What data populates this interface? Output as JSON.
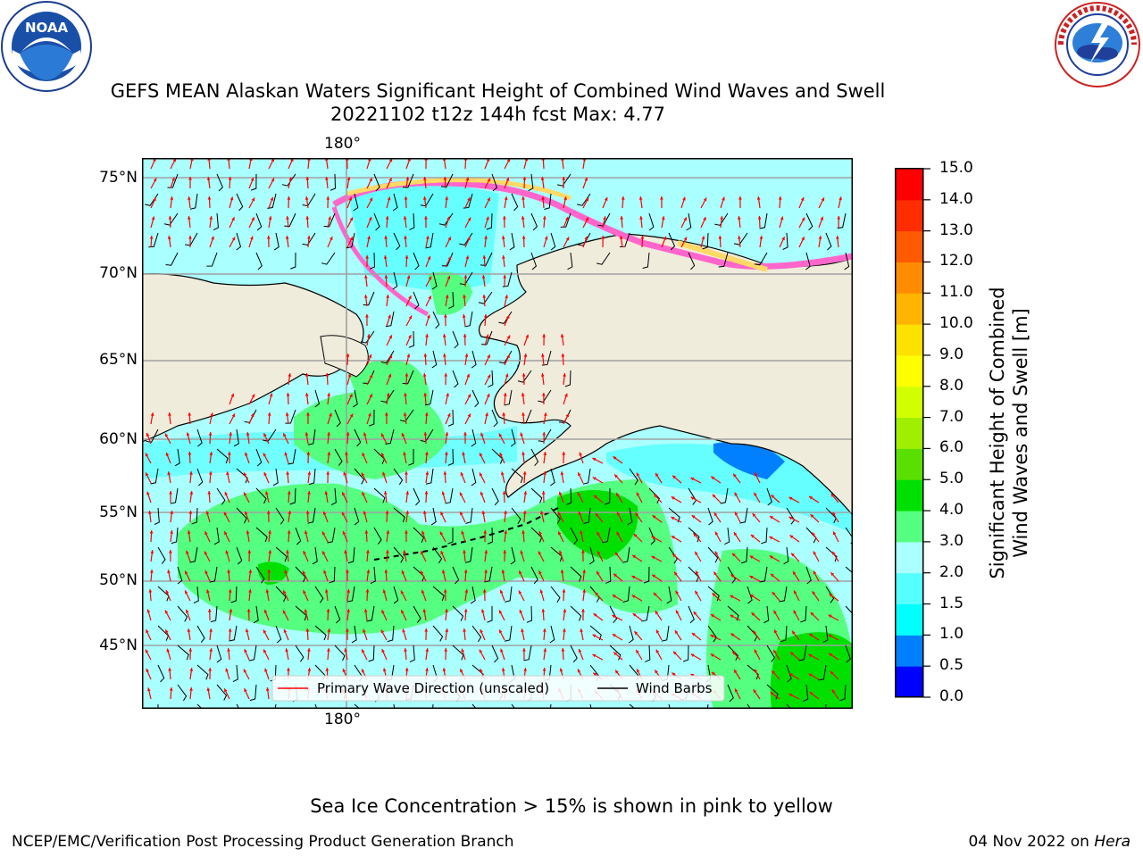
{
  "header": {
    "title_line1": "GEFS MEAN Alaskan Waters Significant Height of Combined Wind Waves and Swell",
    "title_line2": "20221102 t12z 144h fcst   Max: 4.77",
    "left_logo": {
      "text": "NOAA",
      "ring_text": "NATIONAL OCEANIC AND ATMOSPHERIC ADMINISTRATION",
      "bottom_text": "U.S. DEPARTMENT OF COMMERCE"
    },
    "right_logo": {
      "ring_text": "NATIONAL WEATHER SERVICE"
    }
  },
  "map": {
    "lon_label_top": "180°",
    "lon_label_bottom": "180°",
    "lat_labels": [
      "75°N",
      "70°N",
      "65°N",
      "60°N",
      "55°N",
      "50°N",
      "45°N"
    ],
    "legend": {
      "wave_label": "Primary Wave Direction (unscaled)",
      "wind_label": "Wind Barbs"
    }
  },
  "colorbar": {
    "label_line1": "Significant Height of Combined",
    "label_line2": "Wind Waves and Swell [m]",
    "ticks": [
      "15.0",
      "14.0",
      "13.0",
      "12.0",
      "11.0",
      "10.0",
      "9.0",
      "8.0",
      "7.0",
      "6.0",
      "5.0",
      "4.0",
      "3.0",
      "2.0",
      "1.5",
      "1.0",
      "0.5",
      "0.0"
    ],
    "colors_bottom_to_top": [
      "#0000ff",
      "#0080ff",
      "#00ffff",
      "#55ffff",
      "#aaffff",
      "#55ff80",
      "#00e000",
      "#5ae000",
      "#a0ee00",
      "#d2ff00",
      "#ffff00",
      "#ffe100",
      "#ffb400",
      "#ff8c00",
      "#ff5a00",
      "#ff2d00",
      "#ff0000"
    ]
  },
  "note": "Sea Ice Concentration > 15% is shown in pink to yellow",
  "footer": {
    "left": "NCEP/EMC/Verification Post Processing Product Generation Branch",
    "date": "04 Nov 2022 on",
    "host": "Hera"
  },
  "colors": {
    "land": "#efecdc",
    "ocean_base": "#aaffff",
    "ice_pink": "#ff66cc",
    "ice_yellow": "#ffd966",
    "arrow": "#ff0000"
  }
}
